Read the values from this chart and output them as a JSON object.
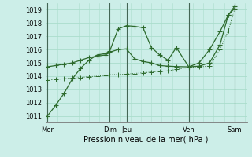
{
  "background_color": "#cceee8",
  "grid_color": "#aaddcc",
  "line_color": "#2d6a2d",
  "xlabel": "Pression niveau de la mer( hPa )",
  "ylim": [
    1010.5,
    1019.5
  ],
  "yticks": [
    1011,
    1012,
    1013,
    1014,
    1015,
    1016,
    1017,
    1018,
    1019
  ],
  "xlim": [
    -0.1,
    9.6
  ],
  "x_tick_positions": [
    0,
    3.0,
    3.8,
    6.8,
    9.0
  ],
  "x_tick_labels": [
    "Mer",
    "Dim",
    "Jeu",
    "Ven",
    "Sam"
  ],
  "x_vlines": [
    0,
    3.0,
    3.8,
    6.8,
    9.0
  ],
  "series1_x": [
    0,
    0.4,
    0.8,
    1.2,
    1.6,
    2.0,
    2.4,
    2.8,
    3.0,
    3.4,
    3.8,
    4.2,
    4.6,
    5.0,
    5.4,
    5.8,
    6.2,
    6.8,
    7.3,
    7.8,
    8.3,
    8.7,
    9.0
  ],
  "series1_y": [
    1011.0,
    1011.8,
    1012.7,
    1013.8,
    1014.6,
    1015.2,
    1015.6,
    1015.7,
    1015.9,
    1017.55,
    1017.8,
    1017.75,
    1017.65,
    1016.15,
    1015.6,
    1015.2,
    1016.15,
    1014.7,
    1015.0,
    1016.0,
    1017.35,
    1018.6,
    1019.25
  ],
  "series2_x": [
    0,
    0.4,
    0.8,
    1.2,
    1.6,
    2.0,
    2.4,
    2.8,
    3.0,
    3.4,
    3.8,
    4.2,
    4.6,
    5.0,
    5.4,
    5.8,
    6.2,
    6.8,
    7.3,
    7.8,
    8.3,
    8.7,
    9.0
  ],
  "series2_y": [
    1014.7,
    1014.8,
    1014.9,
    1015.0,
    1015.2,
    1015.4,
    1015.5,
    1015.6,
    1015.8,
    1016.0,
    1016.05,
    1015.3,
    1015.1,
    1015.0,
    1014.8,
    1014.75,
    1014.72,
    1014.7,
    1014.75,
    1015.0,
    1016.35,
    1018.6,
    1019.1
  ],
  "series3_x": [
    0,
    0.4,
    0.8,
    1.2,
    1.6,
    2.0,
    2.4,
    2.8,
    3.0,
    3.4,
    3.8,
    4.2,
    4.6,
    5.0,
    5.4,
    5.8,
    6.2,
    6.8,
    7.3,
    7.8,
    8.3,
    8.7,
    9.0
  ],
  "series3_y": [
    1013.7,
    1013.75,
    1013.8,
    1013.85,
    1013.9,
    1013.95,
    1014.0,
    1014.05,
    1014.1,
    1014.12,
    1014.15,
    1014.2,
    1014.25,
    1014.3,
    1014.35,
    1014.4,
    1014.5,
    1014.65,
    1014.7,
    1014.75,
    1016.0,
    1017.4,
    1019.0
  ]
}
